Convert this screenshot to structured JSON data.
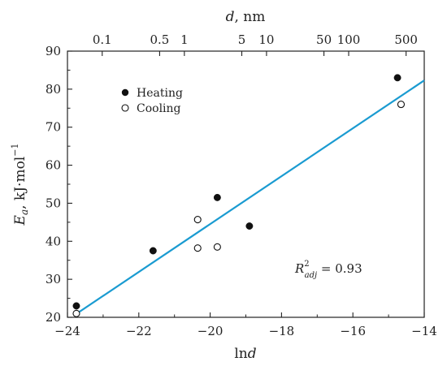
{
  "chart_data": {
    "type": "scatter",
    "xlabel": "lnd",
    "ylabel": "E_a, kJ·mol^−1",
    "top_xlabel": "d, nm",
    "xlim": [
      -24,
      -14
    ],
    "ylim": [
      20,
      90
    ],
    "x_ticks": [
      -24,
      -22,
      -20,
      -18,
      -16,
      -14
    ],
    "y_ticks": [
      20,
      30,
      40,
      50,
      60,
      70,
      80,
      90
    ],
    "x_tick_labels": [
      "−24",
      "−22",
      "−20",
      "−18",
      "−16",
      "−14"
    ],
    "y_tick_labels": [
      "20",
      "30",
      "40",
      "50",
      "60",
      "70",
      "80",
      "90"
    ],
    "top_ticks_nm": [
      0.1,
      0.5,
      1,
      5,
      10,
      50,
      100,
      500
    ],
    "top_tick_labels": [
      "0.1",
      "0.5",
      "1",
      "5",
      "10",
      "50",
      "100",
      "500"
    ],
    "series": [
      {
        "name": "Heating",
        "marker": "filled-circle",
        "color": "#111111",
        "points": [
          {
            "x": -23.75,
            "y": 23
          },
          {
            "x": -21.6,
            "y": 37.5
          },
          {
            "x": -19.8,
            "y": 51.5
          },
          {
            "x": -18.9,
            "y": 44
          },
          {
            "x": -14.75,
            "y": 83
          }
        ]
      },
      {
        "name": "Cooling",
        "marker": "open-circle",
        "color": "#111111",
        "points": [
          {
            "x": -23.75,
            "y": 21
          },
          {
            "x": -20.35,
            "y": 45.7
          },
          {
            "x": -20.35,
            "y": 38.2
          },
          {
            "x": -19.8,
            "y": 38.5
          },
          {
            "x": -14.65,
            "y": 76
          }
        ]
      }
    ],
    "fit_line": {
      "color": "#1a9bd1",
      "points": [
        [
          -23.8,
          20.6
        ],
        [
          -14,
          82.3
        ]
      ]
    },
    "annotation": {
      "text": "R^2_adj = 0.93"
    },
    "legend_placement": "top-left",
    "grid": false
  }
}
